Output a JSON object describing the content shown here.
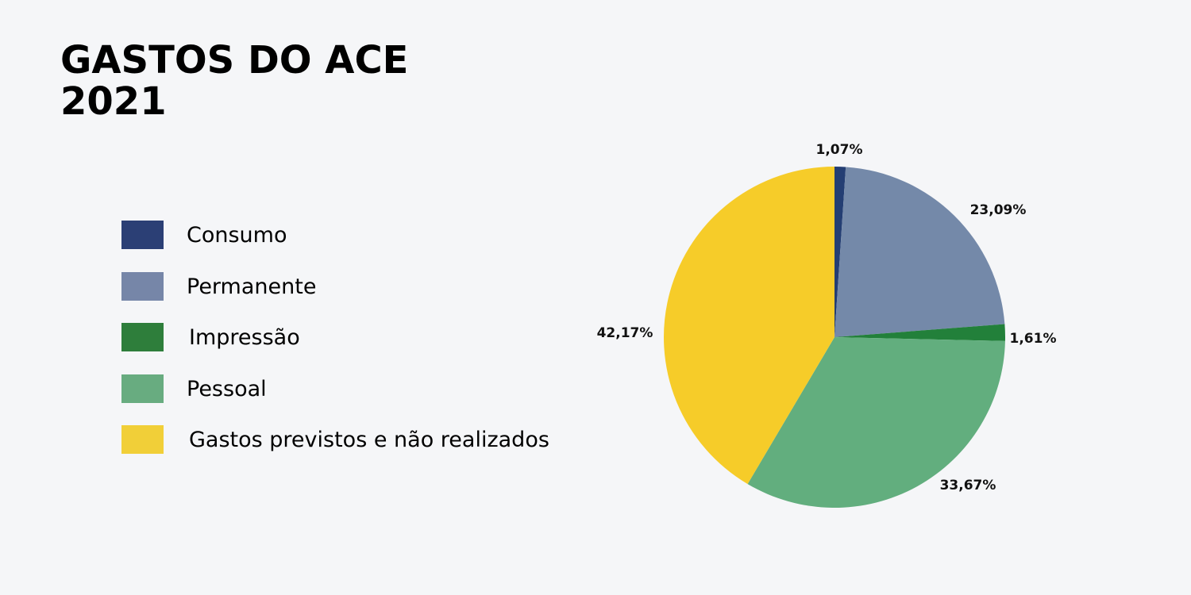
{
  "title": {
    "line1": "GASTOS DO ACE",
    "line2": "2021"
  },
  "legend": {
    "items": [
      {
        "label": "Consumo",
        "color": "#2b3f75"
      },
      {
        "label": "Permanente",
        "color": "#7686a8"
      },
      {
        "label": "Impressão",
        "color": "#2e7e3b"
      },
      {
        "label": "Pessoal",
        "color": "#68ac80"
      },
      {
        "label": "Gastos previstos e não realizados",
        "color": "#f1cf38"
      }
    ]
  },
  "chart_data": {
    "type": "pie",
    "title": "GASTOS DO ACE 2021",
    "categories": [
      "Consumo",
      "Permanente",
      "Impressão",
      "Pessoal",
      "Gastos previstos e não realizados"
    ],
    "values": [
      1.07,
      23.09,
      1.61,
      33.67,
      42.17
    ],
    "value_labels": [
      "1,07%",
      "23,09%",
      "1,61%",
      "33,67%",
      "42,17%"
    ],
    "colors": [
      "#243e73",
      "#7489a9",
      "#22803a",
      "#62ae7e",
      "#f6cc29"
    ],
    "start_angle": "12 o'clock",
    "direction": "clockwise",
    "legend_position": "left",
    "unit": "%"
  }
}
